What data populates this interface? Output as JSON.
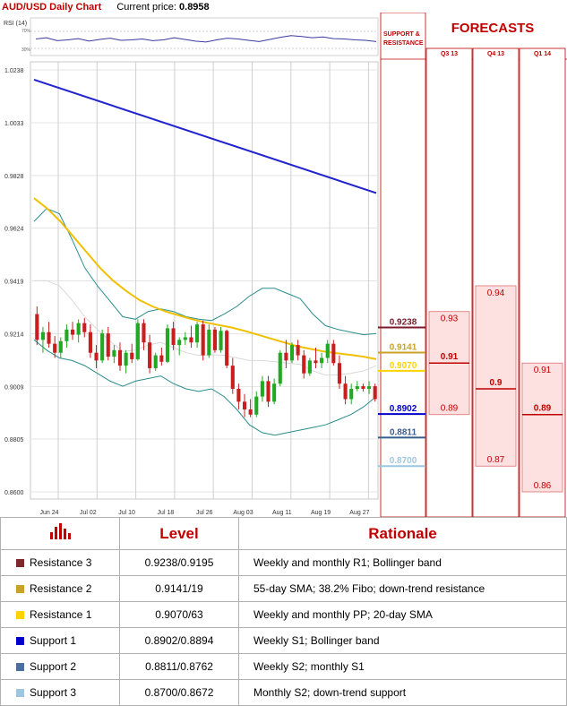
{
  "header": {
    "title": "AUD/USD Daily Chart",
    "price_label": "Current price:",
    "price_value": "0.8958"
  },
  "forecast_panel": {
    "support_label": "SUPPORT & RESISTANCE",
    "forecasts_title": "FORECASTS",
    "quarters": [
      "Q3 13",
      "Q4 13",
      "Q1 14"
    ]
  },
  "chart_data": [
    {
      "type": "candlestick",
      "title": "AUD/USD Daily Chart",
      "y_ticks": [
        "1.0238",
        "1.0033",
        "0.9828",
        "0.9624",
        "0.9419",
        "0.9214",
        "0.9009",
        "0.8805",
        "0.8600"
      ],
      "ylim": [
        0.86,
        1.0238
      ],
      "x_ticks": [
        "Jun 24",
        "Jul 02",
        "Jul 10",
        "Jul 18",
        "Jul 26",
        "Aug 03",
        "Aug 11",
        "Aug 19",
        "Aug 27"
      ],
      "ohlc": [
        [
          0.929,
          0.932,
          0.917,
          0.919
        ],
        [
          0.919,
          0.924,
          0.914,
          0.922
        ],
        [
          0.922,
          0.926,
          0.916,
          0.9175
        ],
        [
          0.9175,
          0.9205,
          0.912,
          0.914
        ],
        [
          0.914,
          0.92,
          0.912,
          0.9185
        ],
        [
          0.9185,
          0.925,
          0.916,
          0.923
        ],
        [
          0.923,
          0.926,
          0.919,
          0.921
        ],
        [
          0.921,
          0.927,
          0.918,
          0.9255
        ],
        [
          0.9255,
          0.9275,
          0.92,
          0.922
        ],
        [
          0.922,
          0.925,
          0.912,
          0.914
        ],
        [
          0.914,
          0.917,
          0.908,
          0.911
        ],
        [
          0.911,
          0.923,
          0.91,
          0.9215
        ],
        [
          0.9215,
          0.924,
          0.911,
          0.9125
        ],
        [
          0.9125,
          0.917,
          0.91,
          0.915
        ],
        [
          0.915,
          0.918,
          0.907,
          0.909
        ],
        [
          0.909,
          0.915,
          0.906,
          0.914
        ],
        [
          0.914,
          0.9175,
          0.91,
          0.9115
        ],
        [
          0.9115,
          0.927,
          0.911,
          0.9255
        ],
        [
          0.9255,
          0.927,
          0.915,
          0.918
        ],
        [
          0.918,
          0.921,
          0.906,
          0.908
        ],
        [
          0.908,
          0.914,
          0.907,
          0.913
        ],
        [
          0.913,
          0.916,
          0.909,
          0.9105
        ],
        [
          0.9105,
          0.925,
          0.91,
          0.9235
        ],
        [
          0.9235,
          0.926,
          0.915,
          0.917
        ],
        [
          0.917,
          0.92,
          0.913,
          0.919
        ],
        [
          0.919,
          0.922,
          0.917,
          0.92
        ],
        [
          0.92,
          0.9245,
          0.916,
          0.918
        ],
        [
          0.918,
          0.926,
          0.916,
          0.925
        ],
        [
          0.925,
          0.9265,
          0.911,
          0.913
        ],
        [
          0.913,
          0.925,
          0.912,
          0.923
        ],
        [
          0.923,
          0.924,
          0.914,
          0.915
        ],
        [
          0.915,
          0.924,
          0.914,
          0.9225
        ],
        [
          0.9225,
          0.923,
          0.908,
          0.909
        ],
        [
          0.909,
          0.912,
          0.898,
          0.9
        ],
        [
          0.9,
          0.902,
          0.892,
          0.895
        ],
        [
          0.895,
          0.898,
          0.889,
          0.892
        ],
        [
          0.892,
          0.896,
          0.889,
          0.89
        ],
        [
          0.89,
          0.899,
          0.889,
          0.897
        ],
        [
          0.897,
          0.905,
          0.895,
          0.903
        ],
        [
          0.903,
          0.905,
          0.893,
          0.895
        ],
        [
          0.895,
          0.904,
          0.894,
          0.902
        ],
        [
          0.902,
          0.915,
          0.901,
          0.914
        ],
        [
          0.914,
          0.919,
          0.908,
          0.911
        ],
        [
          0.911,
          0.918,
          0.91,
          0.917
        ],
        [
          0.917,
          0.919,
          0.911,
          0.913
        ],
        [
          0.913,
          0.915,
          0.904,
          0.906
        ],
        [
          0.906,
          0.912,
          0.905,
          0.911
        ],
        [
          0.911,
          0.916,
          0.908,
          0.91
        ],
        [
          0.91,
          0.914,
          0.908,
          0.912
        ],
        [
          0.912,
          0.919,
          0.91,
          0.9175
        ],
        [
          0.9175,
          0.919,
          0.909,
          0.91
        ],
        [
          0.91,
          0.913,
          0.9,
          0.902
        ],
        [
          0.902,
          0.905,
          0.894,
          0.896
        ],
        [
          0.896,
          0.902,
          0.894,
          0.9
        ],
        [
          0.9,
          0.903,
          0.899,
          0.901
        ],
        [
          0.901,
          0.902,
          0.899,
          0.9
        ],
        [
          0.9,
          0.903,
          0.898,
          0.901
        ],
        [
          0.901,
          0.902,
          0.895,
          0.896
        ]
      ],
      "sma_200": [
        1.02,
        0.976
      ],
      "sma_55": [
        0.974,
        0.97,
        0.965,
        0.959,
        0.953,
        0.947,
        0.942,
        0.938,
        0.9345,
        0.932,
        0.93,
        0.9285,
        0.927,
        0.9258,
        0.9248,
        0.9238,
        0.9225,
        0.921,
        0.9195,
        0.918,
        0.9165,
        0.9155,
        0.9145,
        0.9138,
        0.9132,
        0.9125,
        0.9115
      ],
      "bollinger_upper": [
        0.965,
        0.97,
        0.968,
        0.958,
        0.947,
        0.94,
        0.934,
        0.928,
        0.927,
        0.93,
        0.931,
        0.93,
        0.928,
        0.927,
        0.9265,
        0.929,
        0.932,
        0.936,
        0.939,
        0.939,
        0.937,
        0.935,
        0.929,
        0.9245,
        0.923,
        0.922,
        0.921,
        0.9215
      ],
      "bollinger_lower": [
        0.919,
        0.915,
        0.912,
        0.911,
        0.909,
        0.906,
        0.903,
        0.901,
        0.903,
        0.904,
        0.905,
        0.902,
        0.9,
        0.899,
        0.9,
        0.897,
        0.892,
        0.886,
        0.883,
        0.882,
        0.883,
        0.884,
        0.885,
        0.886,
        0.888,
        0.89,
        0.893,
        0.897
      ],
      "middle_band": [
        0.942,
        0.942,
        0.94,
        0.9345,
        0.928,
        0.923,
        0.9185,
        0.9145,
        0.915,
        0.917,
        0.918,
        0.916,
        0.914,
        0.913,
        0.9132,
        0.913,
        0.912,
        0.911,
        0.911,
        0.9105,
        0.91,
        0.9095,
        0.907,
        0.9053,
        0.9055,
        0.906,
        0.907,
        0.909
      ],
      "rsi": {
        "label": "RSI (14)",
        "ticks": [
          "70%",
          "30%"
        ],
        "values": [
          52,
          55,
          48,
          50,
          53,
          47,
          51,
          54,
          49,
          50,
          52,
          48,
          50,
          55,
          51,
          47,
          45,
          50,
          54,
          52,
          49,
          46,
          51,
          56,
          60,
          58,
          55,
          57,
          53,
          52,
          50,
          49,
          46
        ]
      }
    },
    {
      "type": "forecast_ranges",
      "levels": [
        {
          "label": "0.9238",
          "value": 0.9238,
          "color": "#7b1c2e"
        },
        {
          "label": "0.9141",
          "value": 0.9141,
          "color": "#c9a227"
        },
        {
          "label": "0.9070",
          "value": 0.907,
          "color": "#ffd200"
        },
        {
          "label": "0.8902",
          "value": 0.8902,
          "color": "#0000cc"
        },
        {
          "label": "0.8811",
          "value": 0.8811,
          "color": "#3b5e8f"
        },
        {
          "label": "0.8700",
          "value": 0.87,
          "color": "#9ec6e0"
        }
      ],
      "forecasts": [
        {
          "quarter": "Q3 13",
          "high": "0.93",
          "mid": "0.91",
          "low": "0.89",
          "high_v": 0.93,
          "mid_v": 0.91,
          "low_v": 0.89
        },
        {
          "quarter": "Q4 13",
          "high": "0.94",
          "mid": "0.9",
          "low": "0.87",
          "high_v": 0.94,
          "mid_v": 0.9,
          "low_v": 0.87
        },
        {
          "quarter": "Q1 14",
          "high": "0.91",
          "mid": "0.89",
          "low": "0.86",
          "high_v": 0.91,
          "mid_v": 0.89,
          "low_v": 0.86
        }
      ]
    }
  ],
  "table": {
    "col_level": "Level",
    "col_rationale": "Rationale",
    "rows": [
      {
        "name": "Resistance 3",
        "level": "0.9238/0.9195",
        "rationale": "Weekly and monthly R1; Bollinger band",
        "color": "#7b2b2b"
      },
      {
        "name": "Resistance 2",
        "level": "0.9141/19",
        "rationale": "55-day SMA; 38.2% Fibo; down-trend resistance",
        "color": "#c9a227"
      },
      {
        "name": "Resistance 1",
        "level": "0.9070/63",
        "rationale": "Weekly and monthly PP; 20-day SMA",
        "color": "#ffd200"
      },
      {
        "name": "Support 1",
        "level": "0.8902/0.8894",
        "rationale": "Weekly S1; Bollinger band",
        "color": "#0000cc"
      },
      {
        "name": "Support 2",
        "level": "0.8811/0.8762",
        "rationale": "Weekly S2; monthly S1",
        "color": "#4a6fa0"
      },
      {
        "name": "Support 3",
        "level": "0.8700/0.8672",
        "rationale": "Monthly S2; down-trend support",
        "color": "#9ec6e0"
      }
    ]
  }
}
